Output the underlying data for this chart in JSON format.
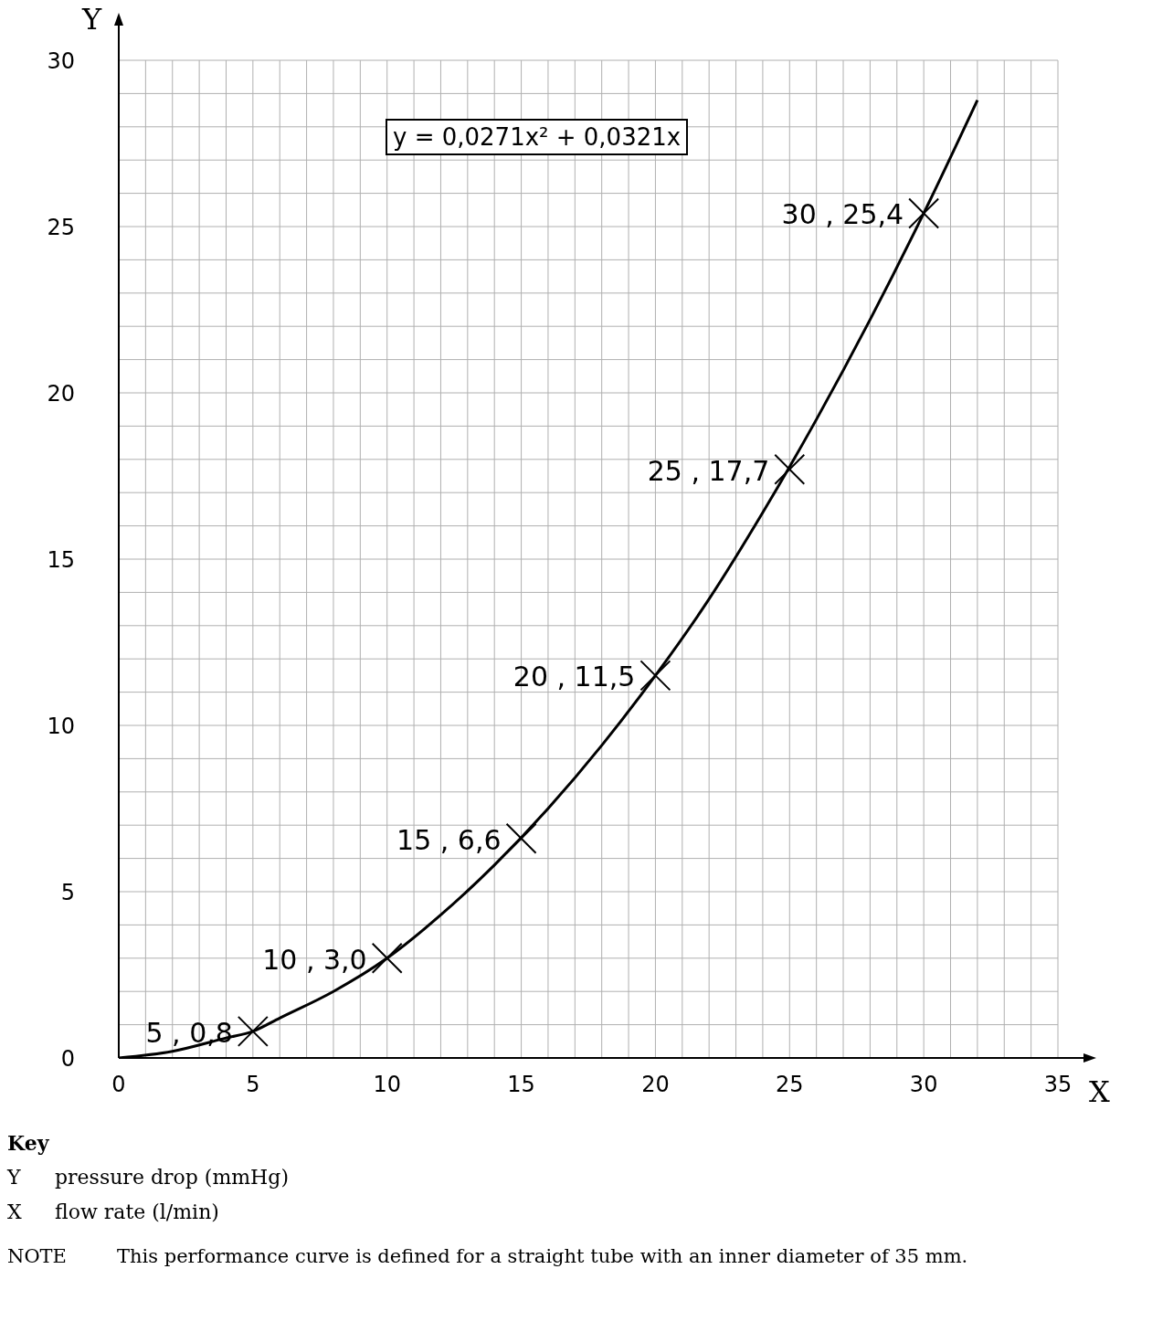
{
  "chart_data": {
    "type": "line",
    "xlabel": "X",
    "ylabel": "Y",
    "xlim": [
      0,
      35
    ],
    "ylim": [
      0,
      30
    ],
    "xticks": [
      0,
      {
        "value": 1,
        "label": null
      },
      {
        "value": 2,
        "label": null
      },
      {
        "value": 3,
        "label": null
      },
      {
        "value": 4,
        "label": null
      },
      5,
      {
        "value": 6,
        "label": null
      },
      {
        "value": 7,
        "label": null
      },
      {
        "value": 8,
        "label": null
      },
      {
        "value": 9,
        "label": null
      },
      10,
      {
        "value": 11,
        "label": null
      },
      {
        "value": 12,
        "label": null
      },
      {
        "value": 13,
        "label": null
      },
      {
        "value": 14,
        "label": null
      },
      15,
      {
        "value": 16,
        "label": null
      },
      {
        "value": 17,
        "label": null
      },
      {
        "value": 18,
        "label": null
      },
      {
        "value": 19,
        "label": null
      },
      20,
      {
        "value": 21,
        "label": null
      },
      {
        "value": 22,
        "label": null
      },
      {
        "value": 23,
        "label": null
      },
      {
        "value": 24,
        "label": null
      },
      25,
      {
        "value": 26,
        "label": null
      },
      {
        "value": 27,
        "label": null
      },
      {
        "value": 28,
        "label": null
      },
      {
        "value": 29,
        "label": null
      },
      30,
      {
        "value": 31,
        "label": null
      },
      {
        "value": 32,
        "label": null
      },
      {
        "value": 33,
        "label": null
      },
      {
        "value": 34,
        "label": null
      },
      35
    ],
    "yticks": [
      0,
      {
        "value": 1,
        "label": null
      },
      {
        "value": 2,
        "label": null
      },
      {
        "value": 3,
        "label": null
      },
      {
        "value": 4,
        "label": null
      },
      5,
      {
        "value": 6,
        "label": null
      },
      {
        "value": 7,
        "label": null
      },
      {
        "value": 8,
        "label": null
      },
      {
        "value": 9,
        "label": null
      },
      10,
      {
        "value": 11,
        "label": null
      },
      {
        "value": 12,
        "label": null
      },
      {
        "value": 13,
        "label": null
      },
      {
        "value": 14,
        "label": null
      },
      15,
      {
        "value": 16,
        "label": null
      },
      {
        "value": 17,
        "label": null
      },
      {
        "value": 18,
        "label": null
      },
      {
        "value": 19,
        "label": null
      },
      20,
      {
        "value": 21,
        "label": null
      },
      {
        "value": 22,
        "label": null
      },
      {
        "value": 23,
        "label": null
      },
      {
        "value": 24,
        "label": null
      },
      25,
      {
        "value": 26,
        "label": null
      },
      {
        "value": 27,
        "label": null
      },
      {
        "value": 28,
        "label": null
      },
      {
        "value": 29,
        "label": null
      },
      30
    ],
    "grid": true,
    "legend": false,
    "series": [
      {
        "type": "line",
        "color": "#000000",
        "marker": "none",
        "line_style": "solid",
        "x": [
          0,
          2,
          4,
          5,
          6,
          8,
          10,
          12,
          14,
          16,
          18,
          20,
          22,
          24,
          26,
          28,
          30,
          32
        ],
        "values": [
          0,
          0.2,
          0.6,
          0.8,
          1.2,
          2.0,
          3.0,
          4.3,
          5.8,
          7.5,
          9.4,
          11.5,
          13.8,
          16.4,
          19.2,
          22.2,
          25.4,
          28.8
        ]
      },
      {
        "type": "scatter",
        "color": "#000000",
        "marker": "cross",
        "x": [
          5,
          10,
          15,
          20,
          25,
          30
        ],
        "values": [
          0.8,
          3.0,
          6.6,
          11.5,
          17.7,
          25.4
        ],
        "value_labels": [
          "5 ,  0,8",
          "10 ,  3,0",
          "15 ,  6,6",
          "20 ,  11,5",
          "25 ,  17,7",
          "30 , 25,4"
        ]
      }
    ],
    "annotations": [
      "y = 0,0271x² + 0,0321x",
      "Key",
      "Y",
      "pressure drop (mmHg)",
      "X",
      "flow rate (l/min)",
      "NOTE",
      "This performance curve is defined for a straight tube with an inner diameter of 35 mm."
    ]
  }
}
